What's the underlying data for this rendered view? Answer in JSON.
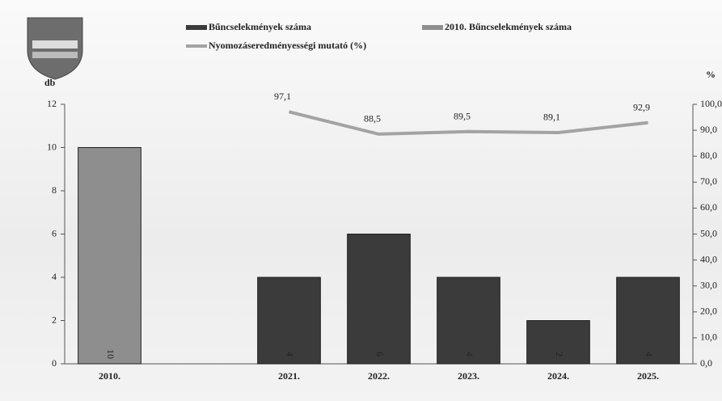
{
  "chart_data": {
    "type": "bar-line",
    "y_label": "db",
    "y2_label": "%",
    "categories": [
      "2010.",
      null,
      "2021.",
      "2022.",
      "2023.",
      "2024.",
      "2025."
    ],
    "series": [
      {
        "name": "Bűncselekmények száma",
        "color": "#3b3b3b",
        "type": "bar",
        "values": [
          null,
          null,
          4,
          6,
          4,
          2,
          4
        ]
      },
      {
        "name": "2010. Bűncselekmények száma",
        "color": "#8e8e8e",
        "type": "bar",
        "values": [
          10,
          null,
          null,
          null,
          null,
          null,
          null
        ]
      },
      {
        "name": "Nyomozáseredményességi mutató (%)",
        "color": "#a3a3a3",
        "type": "line",
        "axis": "y2",
        "values": [
          null,
          null,
          97.1,
          88.5,
          89.5,
          89.1,
          92.9
        ],
        "value_labels": [
          null,
          null,
          "97,1",
          "88,5",
          "89,5",
          "89,1",
          "92,9"
        ]
      }
    ],
    "ylim": [
      0,
      12
    ],
    "yticks": [
      0,
      2,
      4,
      6,
      8,
      10,
      12
    ],
    "y2lim": [
      0,
      100
    ],
    "y2ticks": [
      {
        "value": 0,
        "label": "0,0"
      },
      {
        "value": 10,
        "label": "10,0"
      },
      {
        "value": 20,
        "label": "20,0"
      },
      {
        "value": 30,
        "label": "30,0"
      },
      {
        "value": 40,
        "label": "40,0"
      },
      {
        "value": 50,
        "label": "50,0"
      },
      {
        "value": 60,
        "label": "60,0"
      },
      {
        "value": 70,
        "label": "70,0"
      },
      {
        "value": 80,
        "label": "80,0"
      },
      {
        "value": 90,
        "label": "90,0"
      },
      {
        "value": 100,
        "label": "100,0"
      }
    ]
  }
}
